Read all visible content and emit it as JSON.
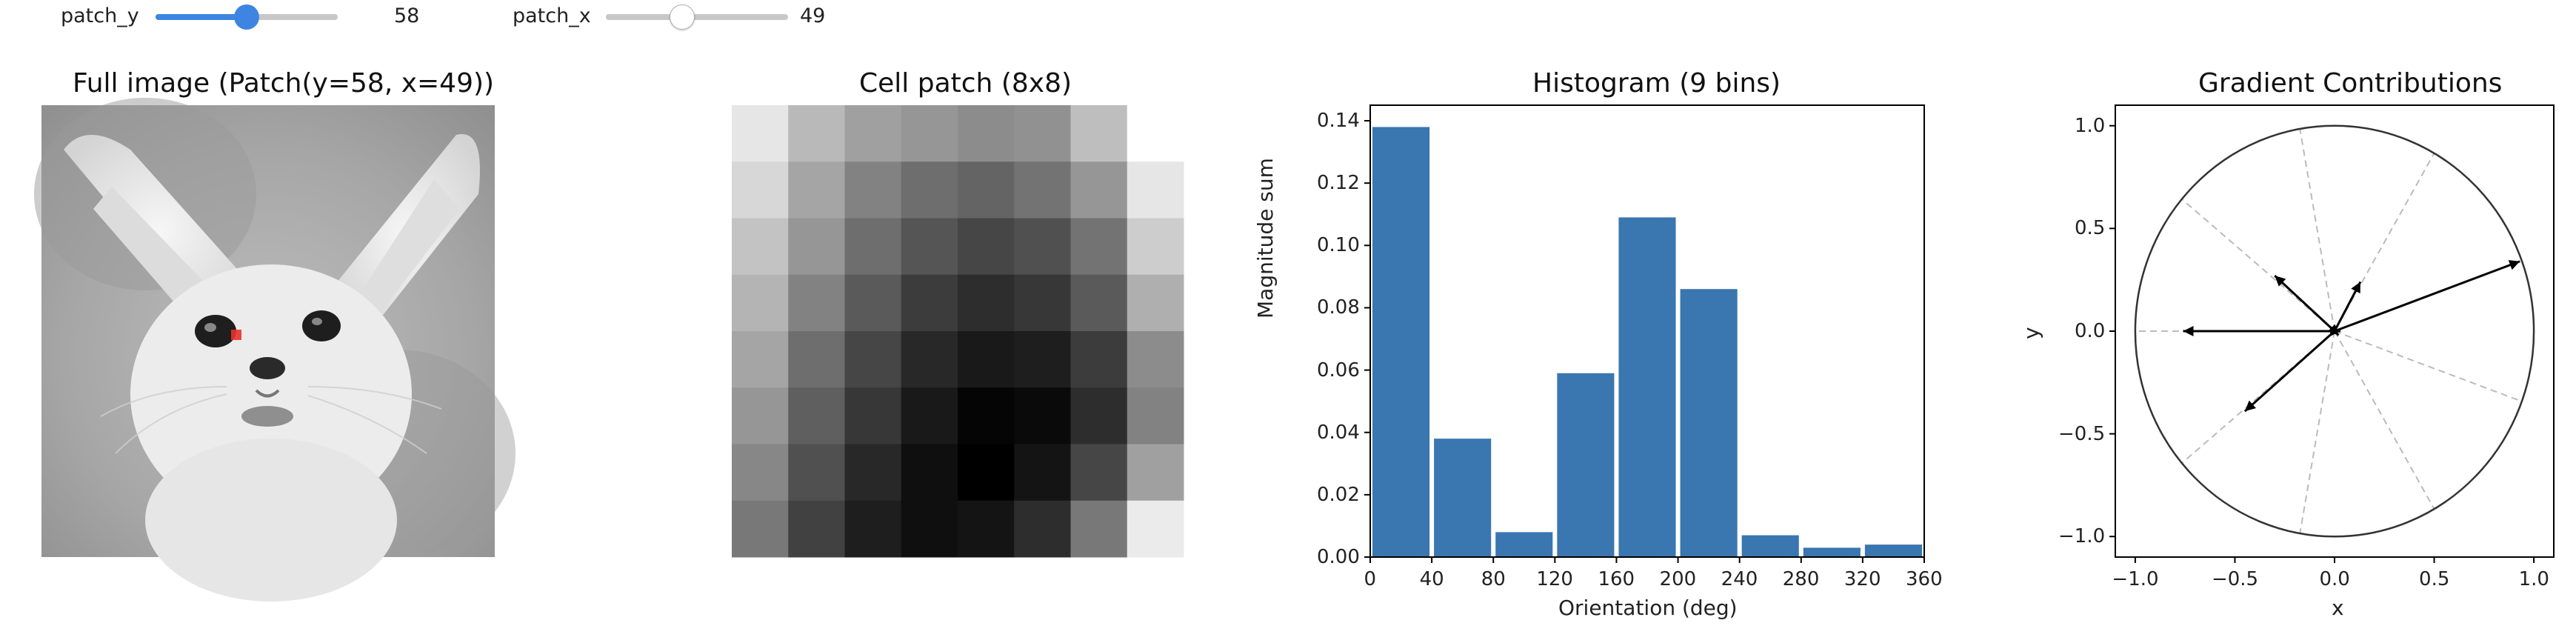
{
  "controls": {
    "patch_y": {
      "label": "patch_y",
      "value": "58",
      "level": 0.5,
      "active": true
    },
    "patch_x": {
      "label": "patch_x",
      "value": "49",
      "level": 0.42,
      "active": false
    }
  },
  "colors": {
    "accent": "#3d85e0",
    "bar": "#3a76b0",
    "arrow": "#000000",
    "circle": "#333333",
    "guide": "#bbbbbb",
    "marker": "#e8322a"
  },
  "panels": {
    "full_image": {
      "title": "Full image (Patch(y=58, x=49))",
      "marker_label": "red patch marker"
    },
    "cell_patch": {
      "title": "Cell patch (8x8)",
      "grid": [
        [
          230,
          185,
          160,
          150,
          140,
          145,
          190,
          255
        ],
        [
          215,
          165,
          130,
          110,
          100,
          115,
          150,
          230
        ],
        [
          195,
          150,
          110,
          85,
          70,
          80,
          115,
          205
        ],
        [
          180,
          130,
          90,
          60,
          45,
          55,
          90,
          175
        ],
        [
          165,
          110,
          70,
          40,
          25,
          30,
          60,
          140
        ],
        [
          150,
          95,
          55,
          25,
          5,
          10,
          45,
          130
        ],
        [
          135,
          80,
          40,
          15,
          0,
          20,
          70,
          160
        ],
        [
          120,
          65,
          30,
          15,
          20,
          45,
          120,
          235
        ]
      ]
    }
  },
  "chart_data": [
    {
      "type": "bar",
      "title": "Histogram (9 bins)",
      "xlabel": "Orientation (deg)",
      "ylabel": "Magnitude sum",
      "bin_edges": [
        0,
        40,
        80,
        120,
        160,
        200,
        240,
        280,
        320,
        360
      ],
      "values": [
        0.138,
        0.038,
        0.008,
        0.059,
        0.109,
        0.086,
        0.007,
        0.003,
        0.004
      ],
      "xticks": [
        "0",
        "40",
        "80",
        "120",
        "160",
        "200",
        "240",
        "280",
        "320",
        "360"
      ],
      "yticks": [
        "0.00",
        "0.02",
        "0.04",
        "0.06",
        "0.08",
        "0.10",
        "0.12",
        "0.14"
      ],
      "xlim": [
        0,
        360
      ],
      "ylim": [
        0,
        0.145
      ],
      "grid": false
    },
    {
      "type": "scatter",
      "title": "Gradient Contributions",
      "xlabel": "x",
      "ylabel": "y",
      "xlim": [
        -1.1,
        1.1
      ],
      "ylim": [
        -1.1,
        1.1
      ],
      "xticks": [
        "−1.0",
        "−0.5",
        "0.0",
        "0.5",
        "1.0"
      ],
      "yticks": [
        "−1.0",
        "−0.5",
        "0.0",
        "0.5",
        "1.0"
      ],
      "bin_guide_angles_deg": [
        20,
        60,
        100,
        140,
        180,
        220,
        260,
        300,
        340
      ],
      "vectors": [
        {
          "x": 0.93,
          "y": 0.34
        },
        {
          "x": -0.76,
          "y": 0.0
        },
        {
          "x": 0.13,
          "y": 0.24
        },
        {
          "x": -0.3,
          "y": 0.27
        },
        {
          "x": -0.45,
          "y": -0.39
        },
        {
          "x": 0.03,
          "y": 0.0
        },
        {
          "x": 0.02,
          "y": -0.02
        }
      ],
      "unit_circle": true,
      "grid": false
    }
  ]
}
